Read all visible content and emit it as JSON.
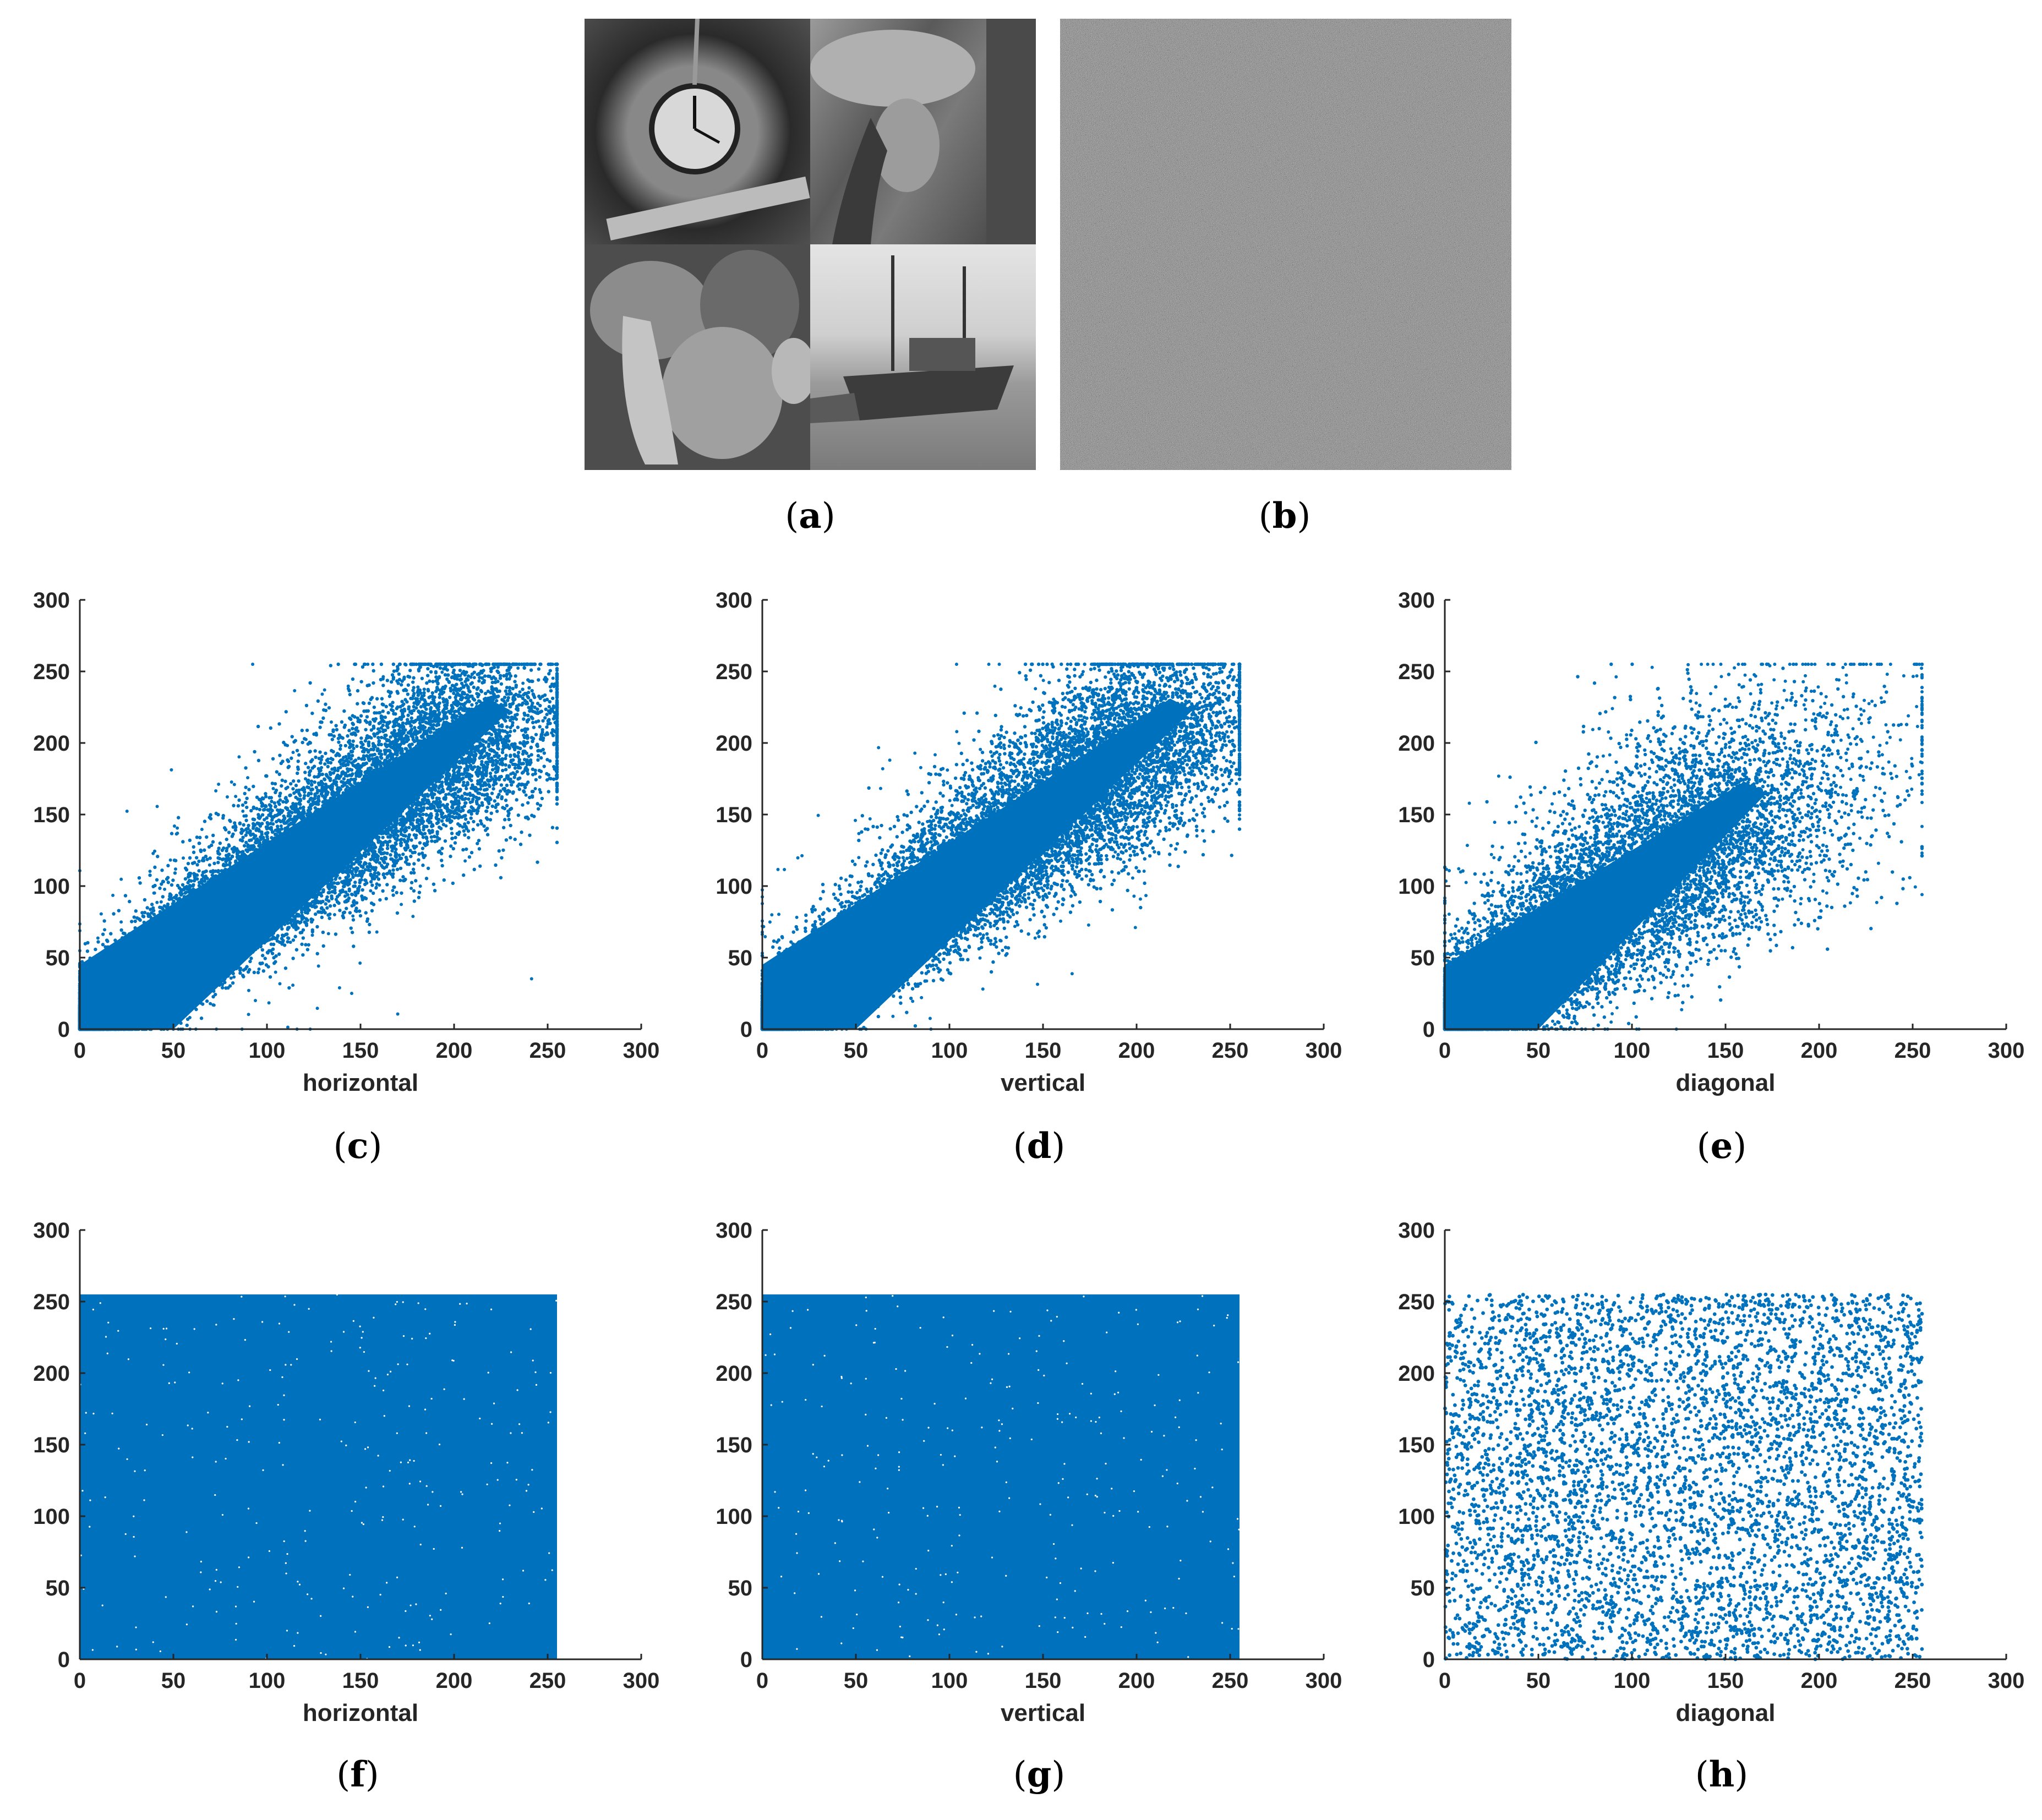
{
  "captions": {
    "a": "a",
    "b": "b",
    "c": "c",
    "d": "d",
    "e": "e",
    "f": "f",
    "g": "g",
    "h": "h"
  },
  "images": {
    "a": {
      "description": "2x2 mosaic of grayscale test images",
      "tiles": [
        "clock",
        "lena",
        "peppers",
        "boat"
      ]
    },
    "b": {
      "description": "encrypted noise image"
    }
  },
  "colors": {
    "marker": "#0072BD",
    "axis": "#262626"
  },
  "chart_data": [
    {
      "id": "c",
      "type": "scatter",
      "xlabel": "horizontal",
      "ylabel": "",
      "xlim": [
        0,
        300
      ],
      "ylim": [
        0,
        300
      ],
      "xticks": [
        "0",
        "50",
        "100",
        "150",
        "200",
        "250",
        "300"
      ],
      "yticks": [
        "0",
        "50",
        "100",
        "150",
        "200",
        "250",
        "300"
      ],
      "distribution": "correlated",
      "grid": false
    },
    {
      "id": "d",
      "type": "scatter",
      "xlabel": "vertical",
      "ylabel": "",
      "xlim": [
        0,
        300
      ],
      "ylim": [
        0,
        300
      ],
      "xticks": [
        "0",
        "50",
        "100",
        "150",
        "200",
        "250",
        "300"
      ],
      "yticks": [
        "0",
        "50",
        "100",
        "150",
        "200",
        "250",
        "300"
      ],
      "distribution": "correlated",
      "grid": false
    },
    {
      "id": "e",
      "type": "scatter",
      "xlabel": "diagonal",
      "ylabel": "",
      "xlim": [
        0,
        300
      ],
      "ylim": [
        0,
        300
      ],
      "xticks": [
        "0",
        "50",
        "100",
        "150",
        "200",
        "250",
        "300"
      ],
      "yticks": [
        "0",
        "50",
        "100",
        "150",
        "200",
        "250",
        "300"
      ],
      "distribution": "correlated",
      "grid": false
    },
    {
      "id": "f",
      "type": "scatter",
      "xlabel": "horizontal",
      "ylabel": "",
      "xlim": [
        0,
        300
      ],
      "ylim": [
        0,
        300
      ],
      "xticks": [
        "0",
        "50",
        "100",
        "150",
        "200",
        "250",
        "300"
      ],
      "yticks": [
        "0",
        "50",
        "100",
        "150",
        "200",
        "250",
        "300"
      ],
      "distribution": "uniform",
      "data_range": [
        0,
        255
      ],
      "grid": false
    },
    {
      "id": "g",
      "type": "scatter",
      "xlabel": "vertical",
      "ylabel": "",
      "xlim": [
        0,
        300
      ],
      "ylim": [
        0,
        300
      ],
      "xticks": [
        "0",
        "50",
        "100",
        "150",
        "200",
        "250",
        "300"
      ],
      "yticks": [
        "0",
        "50",
        "100",
        "150",
        "200",
        "250",
        "300"
      ],
      "distribution": "uniform",
      "data_range": [
        0,
        255
      ],
      "grid": false
    },
    {
      "id": "h",
      "type": "scatter",
      "xlabel": "diagonal",
      "ylabel": "",
      "xlim": [
        0,
        300
      ],
      "ylim": [
        0,
        300
      ],
      "xticks": [
        "0",
        "50",
        "100",
        "150",
        "200",
        "250",
        "300"
      ],
      "yticks": [
        "0",
        "50",
        "100",
        "150",
        "200",
        "250",
        "300"
      ],
      "distribution": "uniform-sparse",
      "data_range": [
        0,
        255
      ],
      "grid": false
    }
  ]
}
